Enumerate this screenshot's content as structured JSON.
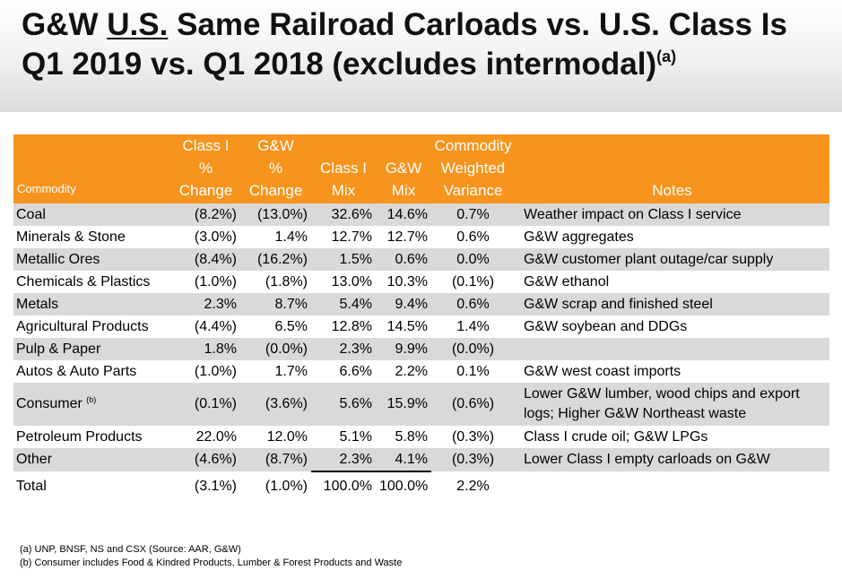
{
  "title": {
    "part1": "G&W ",
    "underlined": "U.S.",
    "part2": " Same Railroad Carloads vs. U.S. Class Is Q1 2019 vs. Q1 2018 (excludes intermodal)",
    "superscript": "(a)"
  },
  "table": {
    "headers": {
      "commodity": "Commodity",
      "class1_change": [
        "Class I",
        "%",
        "Change"
      ],
      "gw_change": [
        "G&W",
        "%",
        "Change"
      ],
      "class1_mix": [
        "Class I",
        "Mix"
      ],
      "gw_mix": [
        "G&W",
        "Mix"
      ],
      "weighted_variance": [
        "Commodity",
        "Weighted",
        "Variance"
      ],
      "notes": "Notes"
    },
    "rows": [
      {
        "commodity": "Coal",
        "class1_change": "(8.2%)",
        "gw_change": "(13.0%)",
        "class1_mix": "32.6%",
        "gw_mix": "14.6%",
        "variance": "0.7%",
        "notes": "Weather impact on Class I service"
      },
      {
        "commodity": "Minerals & Stone",
        "class1_change": "(3.0%)",
        "gw_change": "1.4%",
        "class1_mix": "12.7%",
        "gw_mix": "12.7%",
        "variance": "0.6%",
        "notes": "G&W aggregates"
      },
      {
        "commodity": "Metallic Ores",
        "class1_change": "(8.4%)",
        "gw_change": "(16.2%)",
        "class1_mix": "1.5%",
        "gw_mix": "0.6%",
        "variance": "0.0%",
        "notes": "G&W customer plant outage/car supply"
      },
      {
        "commodity": "Chemicals & Plastics",
        "class1_change": "(1.0%)",
        "gw_change": "(1.8%)",
        "class1_mix": "13.0%",
        "gw_mix": "10.3%",
        "variance": "(0.1%)",
        "notes": "G&W ethanol"
      },
      {
        "commodity": "Metals",
        "class1_change": "2.3%",
        "gw_change": "8.7%",
        "class1_mix": "5.4%",
        "gw_mix": "9.4%",
        "variance": "0.6%",
        "notes": "G&W scrap and finished steel"
      },
      {
        "commodity": "Agricultural Products",
        "class1_change": "(4.4%)",
        "gw_change": "6.5%",
        "class1_mix": "12.8%",
        "gw_mix": "14.5%",
        "variance": "1.4%",
        "notes": "G&W soybean and DDGs"
      },
      {
        "commodity": "Pulp & Paper",
        "class1_change": "1.8%",
        "gw_change": "(0.0%)",
        "class1_mix": "2.3%",
        "gw_mix": "9.9%",
        "variance": "(0.0%)",
        "notes": ""
      },
      {
        "commodity": "Autos & Auto Parts",
        "class1_change": "(1.0%)",
        "gw_change": "1.7%",
        "class1_mix": "6.6%",
        "gw_mix": "2.2%",
        "variance": "0.1%",
        "notes": "G&W west coast imports"
      },
      {
        "commodity": "Consumer",
        "commodity_note": "(b)",
        "class1_change": "(0.1%)",
        "gw_change": "(3.6%)",
        "class1_mix": "5.6%",
        "gw_mix": "15.9%",
        "variance": "(0.6%)",
        "notes": "Lower G&W lumber, wood chips and export logs; Higher G&W Northeast waste"
      },
      {
        "commodity": "Petroleum Products",
        "class1_change": "22.0%",
        "gw_change": "12.0%",
        "class1_mix": "5.1%",
        "gw_mix": "5.8%",
        "variance": "(0.3%)",
        "notes": "Class I crude oil; G&W LPGs"
      },
      {
        "commodity": "Other",
        "class1_change": "(4.6%)",
        "gw_change": "(8.7%)",
        "class1_mix": "2.3%",
        "gw_mix": "4.1%",
        "variance": "(0.3%)",
        "notes": "Lower Class I empty carloads on G&W"
      }
    ],
    "total": {
      "commodity": "Total",
      "class1_change": "(3.1%)",
      "gw_change": "(1.0%)",
      "class1_mix": "100.0%",
      "gw_mix": "100.0%",
      "variance": "2.2%"
    }
  },
  "footnotes": [
    "(a)  UNP, BNSF, NS and CSX (Source:  AAR, G&W)",
    "(b)  Consumer includes Food & Kindred Products, Lumber & Forest Products and Waste"
  ],
  "colors": {
    "header_orange": "#f7941d",
    "row_shade": "#d9d9d9"
  }
}
